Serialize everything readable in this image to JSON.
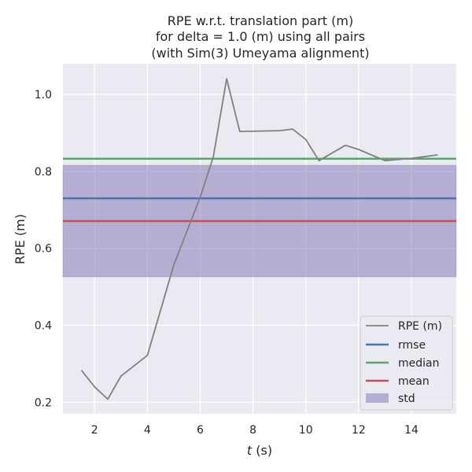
{
  "chart_data": {
    "type": "line",
    "title_lines": [
      "RPE w.r.t. translation part (m)",
      "for delta = 1.0 (m) using all pairs",
      "(with Sim(3) Umeyama alignment)"
    ],
    "xlabel_italic": "t",
    "xlabel_rest": " (s)",
    "ylabel": "RPE (m)",
    "xlim": [
      0.8,
      15.7
    ],
    "ylim": [
      0.17,
      1.08
    ],
    "xticks": [
      2,
      4,
      6,
      8,
      10,
      12,
      14
    ],
    "yticks": [
      0.2,
      0.4,
      0.6,
      0.8,
      1.0
    ],
    "xtick_labels": [
      "2",
      "4",
      "6",
      "8",
      "10",
      "12",
      "14"
    ],
    "ytick_labels": [
      "0.2",
      "0.4",
      "0.6",
      "0.8",
      "1.0"
    ],
    "grid": true,
    "background": "#eaeaf2",
    "series": [
      {
        "name": "RPE (m)",
        "color": "#808080",
        "x": [
          1.5,
          2.0,
          2.5,
          3.0,
          4.0,
          5.0,
          6.0,
          6.5,
          7.0,
          7.5,
          9.0,
          9.5,
          10.0,
          10.5,
          11.5,
          12.0,
          13.0,
          14.0,
          15.0
        ],
        "y": [
          0.283,
          0.24,
          0.208,
          0.268,
          0.322,
          0.557,
          0.733,
          0.839,
          1.041,
          0.904,
          0.906,
          0.91,
          0.883,
          0.828,
          0.868,
          0.857,
          0.828,
          0.834,
          0.843
        ]
      }
    ],
    "stats": {
      "rmse": {
        "name": "rmse",
        "value": 0.73,
        "color": "#4c72b0"
      },
      "median": {
        "name": "median",
        "value": 0.833,
        "color": "#55a868"
      },
      "mean": {
        "name": "mean",
        "value": 0.671,
        "color": "#c44e52"
      },
      "std": {
        "name": "std",
        "lower": 0.526,
        "upper": 0.816,
        "color": "#8172b2"
      }
    },
    "legend": {
      "position": "lower-right",
      "entries": [
        "RPE (m)",
        "rmse",
        "median",
        "mean",
        "std"
      ]
    }
  }
}
